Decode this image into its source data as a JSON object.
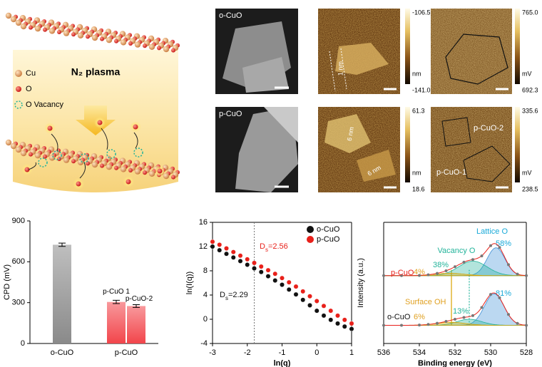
{
  "schematic": {
    "legend": [
      "Cu",
      "O",
      "O Vacancy"
    ],
    "process": "N₂ plasma"
  },
  "images": [
    {
      "label": "o-CuO"
    },
    {
      "label": "p-CuO"
    }
  ],
  "afm": [
    {
      "max": "-106.5",
      "unit": "nm",
      "min": "-141.0",
      "annotations": [
        "1 nm"
      ]
    },
    {
      "max": "61.3",
      "unit": "nm",
      "min": "18.6",
      "annotations": [
        "6 nm",
        "6 nm"
      ]
    }
  ],
  "kpfm": [
    {
      "max": "765.0",
      "unit": "mV",
      "min": "692.3"
    },
    {
      "max": "335.6",
      "unit": "mV",
      "min": "238.5",
      "annotations": [
        "p-CuO-2",
        "p-CuO-1"
      ]
    }
  ],
  "chart_data": [
    {
      "type": "bar",
      "ylabel": "CPD (mV)",
      "categories": [
        "o-CuO",
        "p-CuO"
      ],
      "colors": [
        "#8a8a8a",
        "#f2454b"
      ],
      "bars": [
        {
          "values": [
            725
          ],
          "errors": [
            12
          ]
        },
        {
          "labels": [
            "p-CuO 1",
            "p-CuO-2"
          ],
          "values": [
            305,
            275
          ],
          "errors": [
            12,
            10
          ]
        }
      ],
      "ylim": [
        0,
        900
      ],
      "yticks": [
        0,
        300,
        600,
        900
      ]
    },
    {
      "type": "scatter",
      "xlabel": "ln(q)",
      "ylabel": "ln(I(q))",
      "xlim": [
        -3,
        1
      ],
      "xticks": [
        -3,
        -2,
        -1,
        0,
        1
      ],
      "ylim": [
        -4,
        16
      ],
      "yticks": [
        -4,
        0,
        4,
        8,
        12,
        16
      ],
      "legend": "upper right",
      "vline": -1.8,
      "x": [
        -3,
        -2.8,
        -2.6,
        -2.4,
        -2.2,
        -2,
        -1.8,
        -1.6,
        -1.4,
        -1.2,
        -1,
        -0.8,
        -0.6,
        -0.4,
        -0.2,
        0,
        0.2,
        0.4,
        0.6,
        0.8,
        1
      ],
      "series": [
        {
          "name": "o-CuO",
          "color": "#111111",
          "values": [
            12,
            11.4,
            10.8,
            10.2,
            9.6,
            9,
            8.4,
            7.8,
            7.1,
            6.4,
            5.7,
            4.9,
            4.1,
            3.2,
            2.3,
            1.4,
            0.6,
            -0.1,
            -0.7,
            -1.2,
            -1.6
          ]
        },
        {
          "name": "p-CuO",
          "color": "#e8201a",
          "values": [
            12.8,
            12.3,
            11.7,
            11.1,
            10.5,
            9.9,
            9.3,
            8.7,
            8.1,
            7.5,
            6.8,
            6.1,
            5.4,
            4.6,
            3.8,
            3,
            2.2,
            1.4,
            0.6,
            -0.1,
            -0.7
          ]
        }
      ],
      "annotations": [
        {
          "symbol": "D",
          "subscript": "s",
          "label": "=2.56",
          "color": "#e8201a"
        },
        {
          "symbol": "D",
          "subscript": "s",
          "label": "=2.29",
          "color": "#111111"
        }
      ]
    },
    {
      "type": "line",
      "xlabel": "Binding energy (eV)",
      "ylabel": "Intensity (a.u.)",
      "xlim": [
        536,
        528
      ],
      "xticks": [
        536,
        534,
        532,
        530,
        528
      ],
      "ylim": [
        0,
        10
      ],
      "components": [
        {
          "name": "Lattice O",
          "color": "#3d8fd6",
          "label_color": "#18a9d8"
        },
        {
          "name": "Vacancy O",
          "color": "#22b39a",
          "label_color": "#22b39a"
        },
        {
          "name": "Surface OH",
          "color": "#d9a300",
          "label_color": "#e0a020"
        }
      ],
      "reference_lines": [
        {
          "x": 531.2,
          "color": "#22b39a",
          "dash": true
        },
        {
          "x": 532.2,
          "color": "#d9a300",
          "dash": false
        }
      ],
      "x": [
        536,
        535,
        534,
        533.5,
        533,
        532.5,
        532,
        531.5,
        531,
        530.5,
        530,
        529.5,
        529,
        528.5,
        528
      ],
      "spectra": [
        {
          "name": "p-CuO",
          "color": "#e8201a",
          "baseline": 5.6,
          "values": [
            5.6,
            5.6,
            5.62,
            5.67,
            5.79,
            6,
            6.34,
            6.71,
            6.93,
            7.23,
            8.07,
            7.93,
            6.51,
            5.73,
            5.6
          ],
          "peaks": [
            {
              "center": 529.7,
              "height": 2.3,
              "width": 0.5,
              "label": "58%"
            },
            {
              "center": 531,
              "height": 1.2,
              "width": 0.8,
              "label": "38%"
            },
            {
              "center": 532.3,
              "height": 0.2,
              "width": 0.8,
              "label": "4%"
            }
          ]
        },
        {
          "name": "o-CuO",
          "color": "#111111",
          "baseline": 1.5,
          "values": [
            1.5,
            1.5,
            1.52,
            1.57,
            1.67,
            1.82,
            2,
            2.15,
            2.3,
            2.97,
            4.05,
            3.77,
            2.4,
            1.66,
            1.5
          ],
          "peaks": [
            {
              "center": 529.8,
              "height": 2.6,
              "width": 0.55,
              "label": "81%"
            },
            {
              "center": 531.2,
              "height": 0.5,
              "width": 0.7,
              "label": "13%"
            },
            {
              "center": 532.2,
              "height": 0.25,
              "width": 0.8,
              "label": "6%"
            }
          ]
        }
      ]
    }
  ]
}
